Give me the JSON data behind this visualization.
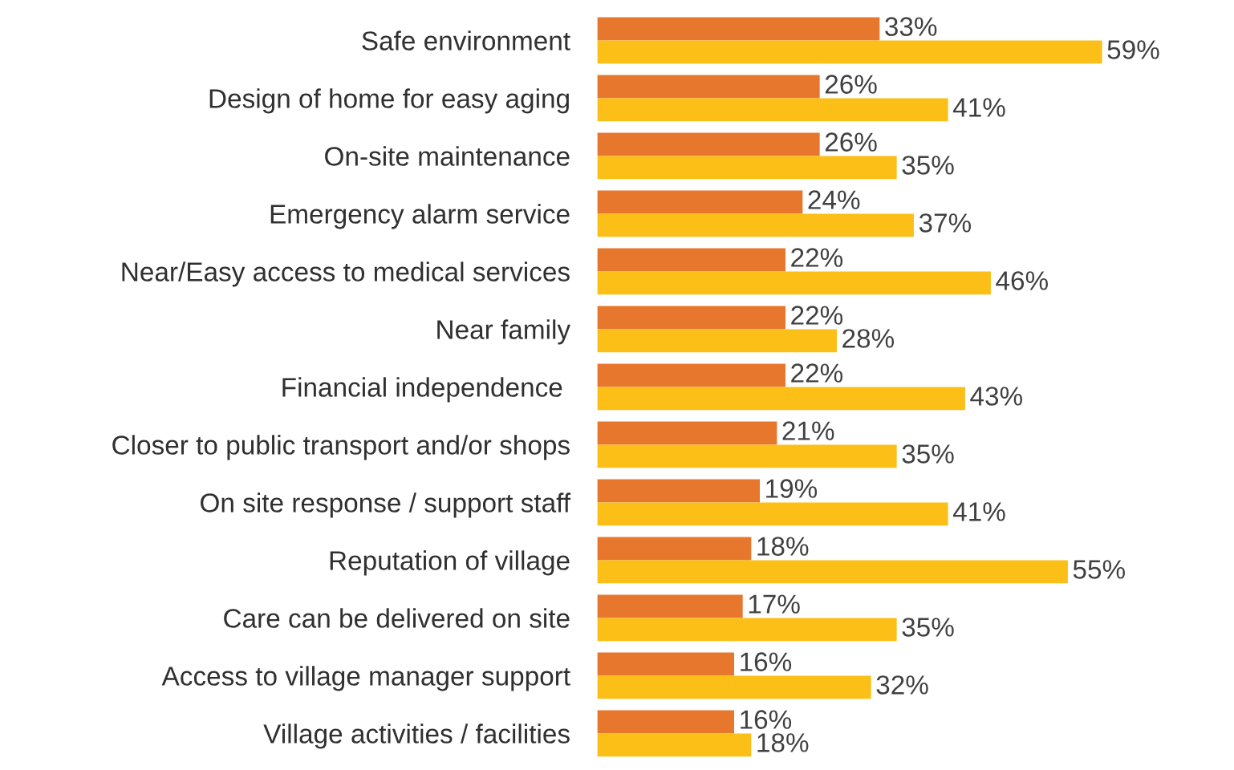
{
  "chart_data": {
    "type": "bar",
    "orientation": "horizontal",
    "categories": [
      "Safe environment",
      "Design of home for easy aging",
      "On-site maintenance",
      "Emergency alarm service",
      "Near/Easy access to medical services",
      "Near family",
      "Financial independence ",
      "Closer to public transport and/or shops",
      "On site response / support staff",
      "Reputation of village",
      "Care can be delivered on site",
      "Access to village manager support",
      "Village activities / facilities"
    ],
    "series": [
      {
        "color": "#e8772e",
        "values": [
          33,
          26,
          26,
          24,
          22,
          22,
          22,
          21,
          19,
          18,
          17,
          16,
          16
        ],
        "value_labels": [
          "33%",
          "26%",
          "26%",
          "24%",
          "22%",
          "22%",
          "22%",
          "21%",
          "19%",
          "18%",
          "17%",
          "16%",
          "16%"
        ]
      },
      {
        "color": "#fbbf17",
        "values": [
          59,
          41,
          35,
          37,
          46,
          28,
          43,
          35,
          41,
          55,
          35,
          32,
          18
        ],
        "value_labels": [
          "59%",
          "41%",
          "35%",
          "37%",
          "46%",
          "28%",
          "43%",
          "35%",
          "41%",
          "55%",
          "35%",
          "32%",
          "18%"
        ]
      }
    ],
    "legend": false,
    "grid": false
  }
}
